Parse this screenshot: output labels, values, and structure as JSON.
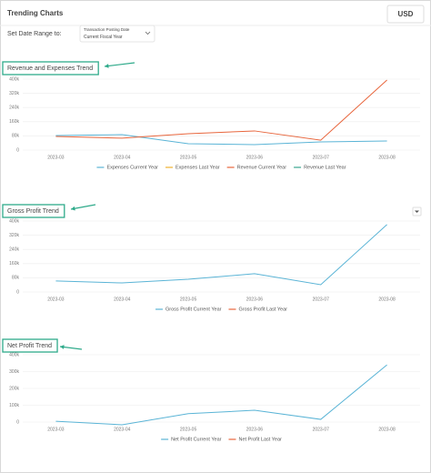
{
  "header": {
    "title": "Trending Charts",
    "currency": "USD",
    "date_range_label": "Set Date Range to:",
    "date_field": "Transaction Posting Date",
    "date_value": "Current Fiscal Year"
  },
  "chart_data": [
    {
      "type": "line",
      "title": "Revenue and Expenses Trend",
      "categories": [
        "2023-03",
        "2023-04",
        "2023-05",
        "2023-06",
        "2023-07",
        "2023-08"
      ],
      "series": [
        {
          "name": "Expenses Current Year",
          "color": "#5ab4d6",
          "values": [
            82000,
            87000,
            36000,
            31000,
            46000,
            51000
          ]
        },
        {
          "name": "Expenses Last Year",
          "color": "#f0b030",
          "values": [
            null,
            null,
            null,
            null,
            null,
            null
          ]
        },
        {
          "name": "Revenue Current Year",
          "color": "#e8663d",
          "values": [
            77000,
            67000,
            92000,
            108000,
            56000,
            395000
          ]
        },
        {
          "name": "Revenue Last Year",
          "color": "#3aa58f",
          "values": [
            null,
            null,
            null,
            null,
            null,
            null
          ]
        }
      ],
      "ylim": [
        0,
        400000
      ],
      "yticks": [
        0,
        {
          "value": 80000,
          "label": "80k"
        },
        {
          "value": 160000,
          "label": "160k"
        },
        {
          "value": 240000,
          "label": "240k"
        },
        {
          "value": 320000,
          "label": "320k"
        },
        {
          "value": 400000,
          "label": "400k"
        }
      ],
      "grid": true
    },
    {
      "type": "line",
      "title": "Gross Profit Trend",
      "categories": [
        "2023-03",
        "2023-04",
        "2023-05",
        "2023-06",
        "2023-07",
        "2023-08"
      ],
      "series": [
        {
          "name": "Gross Profit Current Year",
          "color": "#5ab4d6",
          "values": [
            62000,
            51000,
            72000,
            103000,
            41000,
            380000
          ]
        },
        {
          "name": "Gross Profit Last Year",
          "color": "#e8663d",
          "values": [
            null,
            null,
            null,
            null,
            null,
            null
          ]
        }
      ],
      "ylim": [
        0,
        400000
      ],
      "yticks": [
        0,
        {
          "value": 80000,
          "label": "80k"
        },
        {
          "value": 160000,
          "label": "160k"
        },
        {
          "value": 240000,
          "label": "240k"
        },
        {
          "value": 320000,
          "label": "320k"
        },
        {
          "value": 400000,
          "label": "400k"
        }
      ],
      "grid": true
    },
    {
      "type": "line",
      "title": "Net Profit Trend",
      "categories": [
        "2023-03",
        "2023-04",
        "2023-05",
        "2023-06",
        "2023-07",
        "2023-08"
      ],
      "series": [
        {
          "name": "Net Profit Current Year",
          "color": "#5ab4d6",
          "values": [
            5000,
            -16000,
            50000,
            70000,
            16000,
            340000
          ]
        },
        {
          "name": "Net Profit Last Year",
          "color": "#e8663d",
          "values": [
            null,
            null,
            null,
            null,
            null,
            null
          ]
        }
      ],
      "ylim": [
        0,
        400000
      ],
      "yticks": [
        0,
        {
          "value": 100000,
          "label": "100k"
        },
        {
          "value": 200000,
          "label": "200k"
        },
        {
          "value": 300000,
          "label": "300k"
        },
        {
          "value": 400000,
          "label": "400k"
        }
      ],
      "grid": true
    }
  ]
}
